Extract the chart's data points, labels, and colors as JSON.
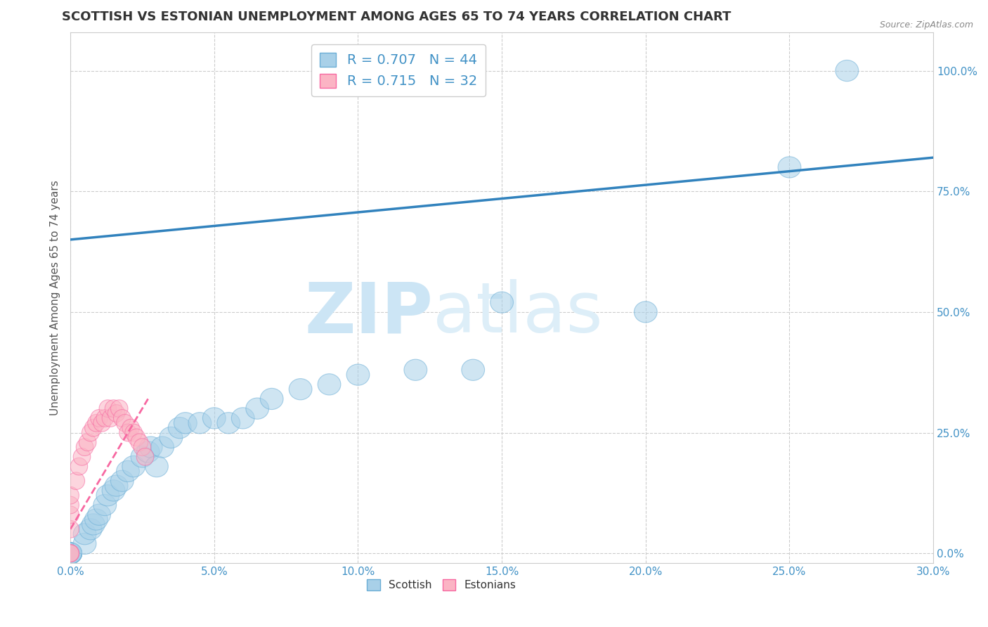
{
  "title": "SCOTTISH VS ESTONIAN UNEMPLOYMENT AMONG AGES 65 TO 74 YEARS CORRELATION CHART",
  "source_text": "Source: ZipAtlas.com",
  "ylabel": "Unemployment Among Ages 65 to 74 years",
  "xlim": [
    0.0,
    0.3
  ],
  "ylim": [
    -0.02,
    1.08
  ],
  "xtick_labels": [
    "0.0%",
    "5.0%",
    "10.0%",
    "15.0%",
    "20.0%",
    "25.0%",
    "30.0%"
  ],
  "xtick_values": [
    0.0,
    0.05,
    0.1,
    0.15,
    0.2,
    0.25,
    0.3
  ],
  "ytick_labels": [
    "0.0%",
    "25.0%",
    "50.0%",
    "75.0%",
    "100.0%"
  ],
  "ytick_values": [
    0.0,
    0.25,
    0.5,
    0.75,
    1.0
  ],
  "title_fontsize": 13,
  "axis_label_fontsize": 11,
  "tick_fontsize": 11,
  "scottish_color": "#a8d0e8",
  "scottish_edge_color": "#6baed6",
  "estonian_color": "#fbb4c4",
  "estonian_edge_color": "#f768a1",
  "scottish_R": 0.707,
  "scottish_N": 44,
  "estonian_R": 0.715,
  "estonian_N": 32,
  "trendline_scottish_color": "#3182bd",
  "trendline_estonian_color": "#f768a1",
  "scottish_x": [
    0.0,
    0.0,
    0.0,
    0.0,
    0.0,
    0.0,
    0.0,
    0.0,
    0.005,
    0.005,
    0.007,
    0.008,
    0.009,
    0.01,
    0.012,
    0.013,
    0.015,
    0.016,
    0.018,
    0.02,
    0.022,
    0.025,
    0.027,
    0.028,
    0.03,
    0.032,
    0.035,
    0.038,
    0.04,
    0.045,
    0.05,
    0.055,
    0.06,
    0.065,
    0.07,
    0.08,
    0.09,
    0.1,
    0.12,
    0.14,
    0.15,
    0.2,
    0.25,
    0.27
  ],
  "scottish_y": [
    0.0,
    0.0,
    0.0,
    0.0,
    0.0,
    0.0,
    0.0,
    0.0,
    0.02,
    0.04,
    0.05,
    0.06,
    0.07,
    0.08,
    0.1,
    0.12,
    0.13,
    0.14,
    0.15,
    0.17,
    0.18,
    0.2,
    0.21,
    0.22,
    0.18,
    0.22,
    0.24,
    0.26,
    0.27,
    0.27,
    0.28,
    0.27,
    0.28,
    0.3,
    0.32,
    0.34,
    0.35,
    0.37,
    0.38,
    0.38,
    0.52,
    0.5,
    0.8,
    1.0
  ],
  "estonian_x": [
    0.0,
    0.0,
    0.0,
    0.0,
    0.0,
    0.0,
    0.0,
    0.002,
    0.003,
    0.004,
    0.005,
    0.006,
    0.007,
    0.008,
    0.009,
    0.01,
    0.011,
    0.012,
    0.013,
    0.014,
    0.015,
    0.016,
    0.017,
    0.018,
    0.019,
    0.02,
    0.021,
    0.022,
    0.023,
    0.024,
    0.025,
    0.026
  ],
  "estonian_y": [
    0.0,
    0.0,
    0.0,
    0.05,
    0.08,
    0.1,
    0.12,
    0.15,
    0.18,
    0.2,
    0.22,
    0.23,
    0.25,
    0.26,
    0.27,
    0.28,
    0.27,
    0.28,
    0.3,
    0.28,
    0.3,
    0.29,
    0.3,
    0.28,
    0.27,
    0.25,
    0.26,
    0.25,
    0.24,
    0.23,
    0.22,
    0.2
  ],
  "watermark_text": "ZIPatlas",
  "watermark_color": "#cce5f5",
  "background_color": "#ffffff",
  "grid_color": "#cccccc",
  "trendline_s_x0": 0.0,
  "trendline_s_y0": 0.65,
  "trendline_s_x1": 0.3,
  "trendline_s_y1": 0.82,
  "trendline_e_x0": 0.0,
  "trendline_e_x1": 0.027,
  "trendline_e_y0": 0.05,
  "trendline_e_y1": 0.32
}
